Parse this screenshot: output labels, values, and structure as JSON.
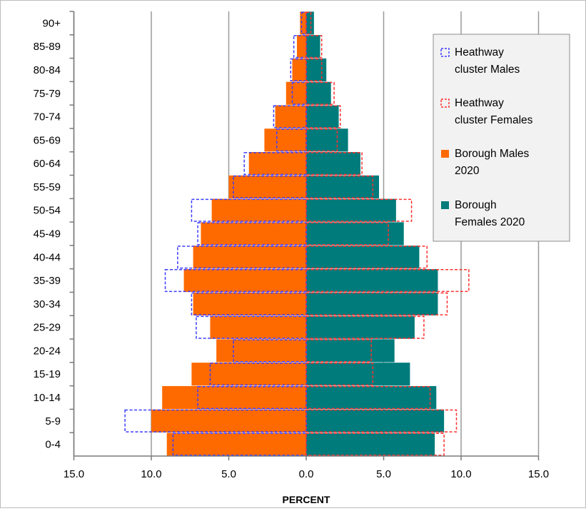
{
  "chart_data": {
    "type": "bar",
    "orientation": "horizontal",
    "subtype": "population-pyramid",
    "title": "",
    "xlabel": "PERCENT",
    "ylabel": "",
    "xlim": [
      -15,
      15
    ],
    "x_tick_values": [
      -15,
      -10,
      -5,
      0,
      5,
      10,
      15
    ],
    "x_tick_labels": [
      "15.0",
      "10.0",
      "5.0",
      "0.0",
      "5.0",
      "10.0",
      "15.0"
    ],
    "grid": "vertical",
    "legend_position": "top-right",
    "categories": [
      "90+",
      "85-89",
      "80-84",
      "75-79",
      "70-74",
      "65-69",
      "60-64",
      "55-59",
      "50-54",
      "45-49",
      "40-44",
      "35-39",
      "30-34",
      "25-29",
      "20-24",
      "15-19",
      "10-14",
      "5-9",
      "0-4"
    ],
    "series": [
      {
        "name": "Heathway cluster Males",
        "side": "left",
        "style": "dashed-outline",
        "color": "#3b3bff",
        "values": [
          0.3,
          0.8,
          1.0,
          0.9,
          2.1,
          1.9,
          4.0,
          4.7,
          7.4,
          7.0,
          8.3,
          9.1,
          7.4,
          7.1,
          4.7,
          6.2,
          7.0,
          11.7,
          8.6
        ]
      },
      {
        "name": "Heathway cluster Females",
        "side": "right",
        "style": "dashed-outline",
        "color": "#ff3030",
        "values": [
          0.3,
          1.0,
          1.0,
          1.8,
          2.2,
          2.0,
          3.6,
          4.3,
          6.8,
          5.3,
          7.8,
          10.5,
          9.1,
          7.6,
          4.2,
          4.3,
          8.0,
          9.7,
          8.9
        ]
      },
      {
        "name": "Borough Males 2020",
        "side": "left",
        "style": "filled",
        "color": "#ff6a00",
        "values": [
          0.4,
          0.6,
          0.9,
          1.3,
          2.0,
          2.7,
          3.7,
          5.0,
          6.1,
          6.8,
          7.3,
          7.9,
          7.3,
          6.2,
          5.8,
          7.4,
          9.3,
          10.0,
          9.0
        ]
      },
      {
        "name": "Borough Females 2020",
        "side": "right",
        "style": "filled",
        "color": "#007b7b",
        "values": [
          0.5,
          0.9,
          1.3,
          1.6,
          2.1,
          2.7,
          3.5,
          4.7,
          5.8,
          6.3,
          7.3,
          8.5,
          8.5,
          7.0,
          5.7,
          6.7,
          8.4,
          8.9,
          8.3
        ]
      }
    ]
  }
}
